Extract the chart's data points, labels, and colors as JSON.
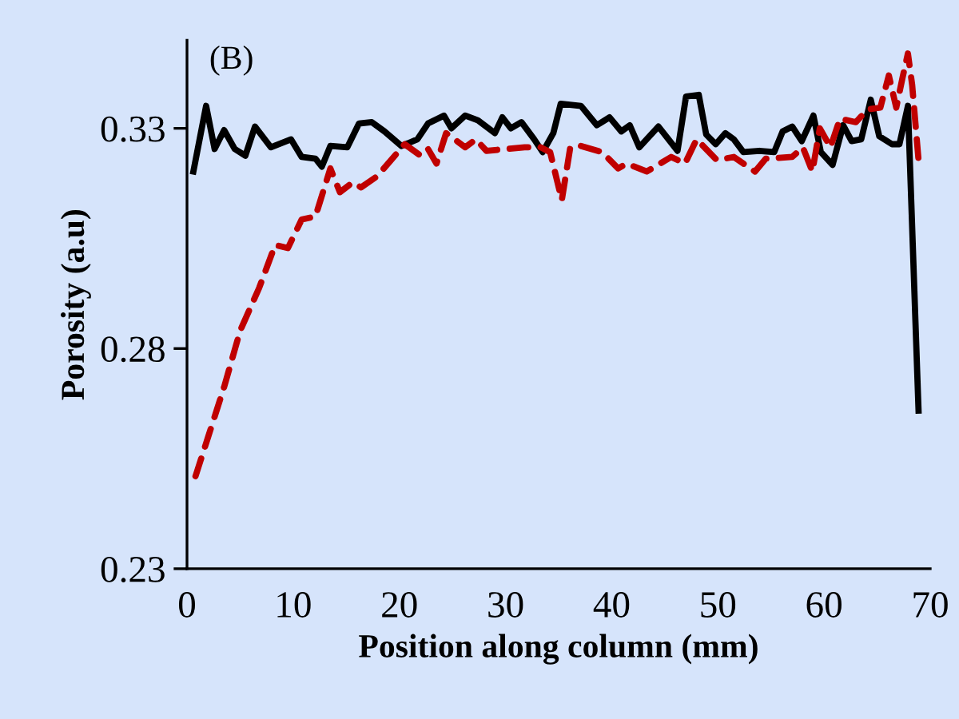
{
  "chart_data": {
    "type": "line",
    "xlabel": "Position along column (mm)",
    "ylabel": "Porosity (a.u)",
    "annotations": [
      "(B)"
    ],
    "xlim": [
      0,
      70
    ],
    "xticks": [
      0,
      10,
      20,
      30,
      40,
      50,
      60,
      70
    ],
    "ylim": [
      0.23,
      0.35
    ],
    "yticks": [
      {
        "value": 0.23,
        "label": "0.23"
      },
      {
        "value": 0.28,
        "label": "0.28"
      },
      {
        "value": 0.33,
        "label": "0.33"
      }
    ],
    "grid": false,
    "legend": false,
    "marker": "none",
    "series": [
      {
        "color": "#000000",
        "line_style": "solid",
        "x": [
          0.6,
          1.8,
          2.6,
          3.5,
          4.5,
          5.5,
          6.4,
          7.9,
          9.8,
          10.8,
          12.1,
          12.7,
          13.5,
          15.1,
          16.2,
          17.4,
          18.6,
          20.2,
          21.7,
          22.7,
          24.2,
          24.9,
          26.2,
          27.4,
          29.0,
          29.7,
          30.5,
          31.5,
          32.7,
          33.5,
          34.5,
          35.2,
          37.1,
          38.6,
          39.8,
          40.9,
          41.7,
          42.6,
          44.4,
          46.2,
          47.0,
          48.2,
          48.9,
          49.8,
          50.7,
          51.5,
          52.4,
          53.9,
          55.3,
          56.1,
          57.0,
          57.9,
          59.0,
          59.7,
          60.8,
          61.8,
          62.6,
          63.5,
          64.4,
          65.2,
          66.4,
          67.1,
          67.9,
          68.9
        ],
        "values": [
          0.3202,
          0.3351,
          0.3253,
          0.3296,
          0.3253,
          0.3238,
          0.3304,
          0.3257,
          0.3275,
          0.3235,
          0.3231,
          0.3213,
          0.326,
          0.3257,
          0.3311,
          0.3314,
          0.3293,
          0.326,
          0.3275,
          0.3311,
          0.3329,
          0.33,
          0.3329,
          0.3318,
          0.3289,
          0.3325,
          0.33,
          0.3314,
          0.3275,
          0.3246,
          0.3289,
          0.3356,
          0.3351,
          0.3307,
          0.3325,
          0.3293,
          0.3307,
          0.3257,
          0.3304,
          0.3249,
          0.3372,
          0.3376,
          0.3286,
          0.3264,
          0.3289,
          0.3275,
          0.3246,
          0.3249,
          0.3246,
          0.3293,
          0.3304,
          0.3271,
          0.3329,
          0.3246,
          0.3217,
          0.3307,
          0.3271,
          0.3275,
          0.3365,
          0.3282,
          0.3264,
          0.3264,
          0.3351,
          0.2659
        ]
      },
      {
        "color": "#c00000",
        "line_style": "dashed",
        "x": [
          0.8,
          2.0,
          3.5,
          5.0,
          6.8,
          8.3,
          9.5,
          10.8,
          12.1,
          13.5,
          14.4,
          15.6,
          16.4,
          17.9,
          20.5,
          22.0,
          22.7,
          23.5,
          24.4,
          25.2,
          26.2,
          27.2,
          28.2,
          31.8,
          33.3,
          34.2,
          35.3,
          36.1,
          37.1,
          39.1,
          40.6,
          41.4,
          43.3,
          45.6,
          46.9,
          48.0,
          49.9,
          51.5,
          53.5,
          54.5,
          57.0,
          58.0,
          58.9,
          59.6,
          60.6,
          61.5,
          63.0,
          64.1,
          65.3,
          66.1,
          66.8,
          67.4,
          67.9,
          68.3,
          68.9
        ],
        "values": [
          0.251,
          0.26,
          0.2713,
          0.284,
          0.2938,
          0.3035,
          0.3028,
          0.3093,
          0.31,
          0.3209,
          0.3155,
          0.3177,
          0.3166,
          0.3191,
          0.3264,
          0.3238,
          0.3253,
          0.322,
          0.3289,
          0.3275,
          0.3257,
          0.3275,
          0.3249,
          0.3257,
          0.3257,
          0.3246,
          0.3137,
          0.3257,
          0.326,
          0.3246,
          0.3209,
          0.322,
          0.3202,
          0.3235,
          0.322,
          0.3275,
          0.3228,
          0.3235,
          0.3202,
          0.3231,
          0.3235,
          0.3257,
          0.3202,
          0.33,
          0.3257,
          0.3322,
          0.3314,
          0.3343,
          0.3347,
          0.342,
          0.3347,
          0.3416,
          0.347,
          0.3398,
          0.3228
        ]
      }
    ]
  }
}
